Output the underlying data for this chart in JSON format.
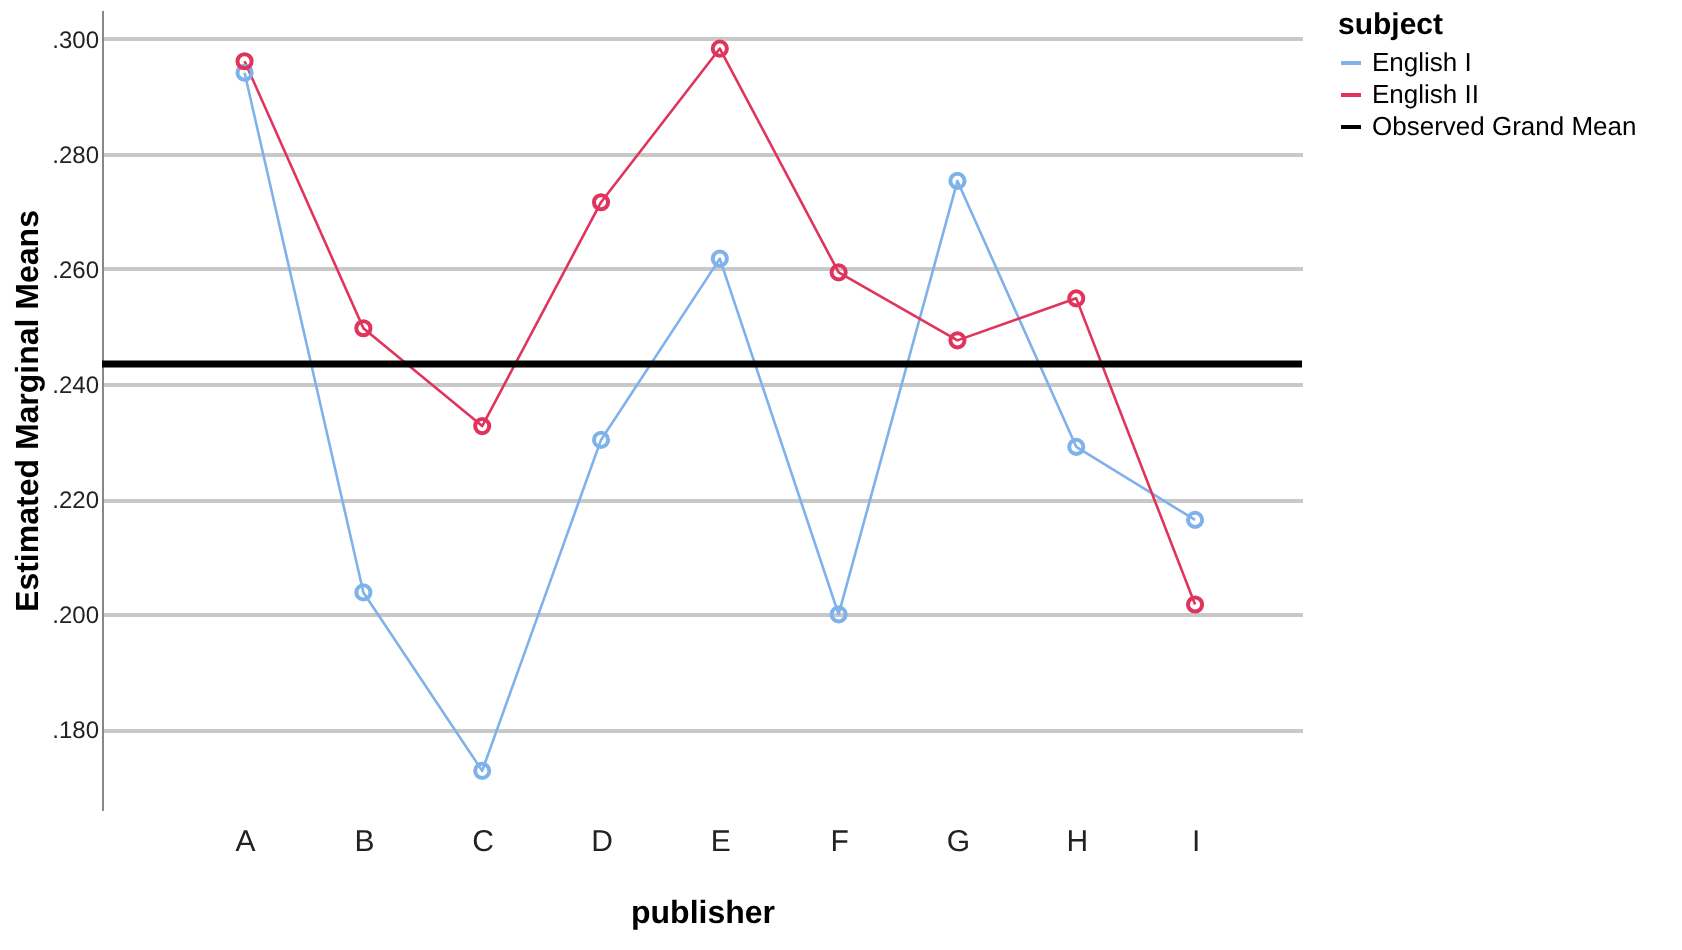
{
  "chart_data": {
    "type": "line",
    "xlabel": "publisher",
    "ylabel": "Estimated Marginal Means",
    "legend_title": "subject",
    "categories": [
      "A",
      "B",
      "C",
      "D",
      "E",
      "F",
      "G",
      "H",
      "I"
    ],
    "series": [
      {
        "name": "English I",
        "color": "#7fb2ea",
        "values": [
          0.2941,
          0.2038,
          0.1728,
          0.2303,
          0.2618,
          0.2,
          0.2753,
          0.2291,
          0.2164
        ]
      },
      {
        "name": "English II",
        "color": "#e0345c",
        "values": [
          0.2961,
          0.2497,
          0.2327,
          0.2716,
          0.2983,
          0.2594,
          0.2476,
          0.2549,
          0.2017
        ]
      }
    ],
    "ref_lines": [
      {
        "axis": "y",
        "value": 0.2435,
        "label": "Observed Grand Mean",
        "color": "#000000",
        "line_style": "solid"
      }
    ],
    "ylim": [
      0.166,
      0.305
    ],
    "yticks": [
      {
        "value": 0.18,
        "label": ".180"
      },
      {
        "value": 0.2,
        "label": ".200"
      },
      {
        "value": 0.22,
        "label": ".220"
      },
      {
        "value": 0.24,
        "label": ".240"
      },
      {
        "value": 0.26,
        "label": ".260"
      },
      {
        "value": 0.28,
        "label": ".280"
      },
      {
        "value": 0.3,
        "label": ".300"
      }
    ],
    "grid": "y",
    "legend": "right",
    "marker": "circle",
    "line_style": "solid"
  }
}
